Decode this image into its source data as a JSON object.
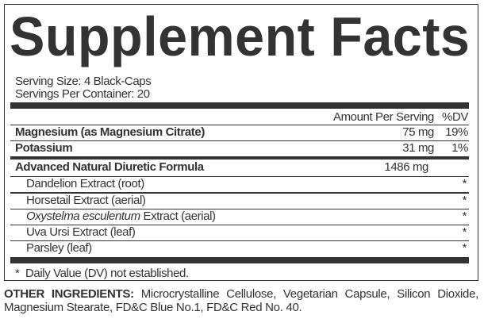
{
  "title": "Supplement Facts",
  "serving_size": "Serving Size: 4 Black-Caps",
  "servings_per_container": "Servings Per Container: 20",
  "header": {
    "amount": "Amount Per Serving",
    "dv": "%DV"
  },
  "nutrients": [
    {
      "name": "Magnesium (as Magnesium Citrate)",
      "amount": "75 mg",
      "dv": "19%"
    },
    {
      "name": "Potassium",
      "amount": "31 mg",
      "dv": "1%"
    }
  ],
  "blend": {
    "name": "Advanced Natural Diuretic Formula",
    "amount": "1486 mg"
  },
  "blend_items": [
    {
      "name": "Dandelion Extract (root)",
      "dv": "*"
    },
    {
      "name_italic": "Oxystelma esculentum",
      "name": "Horsetail Extract (aerial)",
      "dv": "*"
    },
    {
      "name": "Extract (aerial)",
      "dv": "*"
    },
    {
      "name": "Uva Ursi Extract (leaf)",
      "dv": "*"
    },
    {
      "name": "Parsley (leaf)",
      "dv": "*"
    }
  ],
  "footnote": "*  Daily Value (DV) not established.",
  "other_ingredients": {
    "label": "OTHER INGREDIENTS:",
    "text": "Microcrystalline Cellulose, Vegetarian Capsule, Silicon Dioxide, Magnesium Stearate, FD&C Blue No.1, FD&C Red No. 40."
  }
}
